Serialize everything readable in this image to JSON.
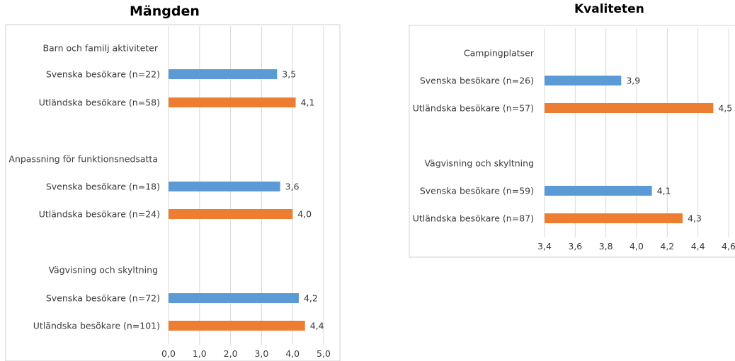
{
  "colors": {
    "swedish": "#5B9BD5",
    "foreign": "#ED7D31",
    "grid": "#d9d9d9",
    "frame": "#d0d0d0"
  },
  "chart_data": [
    {
      "type": "bar",
      "orientation": "horizontal",
      "title": "Mängden",
      "xlim": [
        0,
        5
      ],
      "xticks": [
        "0,0",
        "1,0",
        "2,0",
        "3,0",
        "4,0",
        "5,0"
      ],
      "grid": true,
      "groups": [
        {
          "name": "Barn och familj aktiviteter",
          "bars": [
            {
              "label": "Svenska besökare (n=22)",
              "value": 3.5,
              "value_label": "3,5",
              "color_key": "swedish"
            },
            {
              "label": "Utländska besökare (n=58)",
              "value": 4.1,
              "value_label": "4,1",
              "color_key": "foreign"
            }
          ]
        },
        {
          "name": "Anpassning för funktionsnedsatta",
          "bars": [
            {
              "label": "Svenska besökare (n=18)",
              "value": 3.6,
              "value_label": "3,6",
              "color_key": "swedish"
            },
            {
              "label": "Utländska besökare (n=24)",
              "value": 4.0,
              "value_label": "4,0",
              "color_key": "foreign"
            }
          ]
        },
        {
          "name": "Vägvisning och skyltning",
          "bars": [
            {
              "label": "Svenska besökare (n=72)",
              "value": 4.2,
              "value_label": "4,2",
              "color_key": "swedish"
            },
            {
              "label": "Utländska besökare (n=101)",
              "value": 4.4,
              "value_label": "4,4",
              "color_key": "foreign"
            }
          ]
        }
      ]
    },
    {
      "type": "bar",
      "orientation": "horizontal",
      "title": "Kvaliteten",
      "xlim": [
        3.4,
        4.6
      ],
      "xticks": [
        "3,4",
        "3,6",
        "3,8",
        "4,0",
        "4,2",
        "4,4",
        "4,6"
      ],
      "grid": true,
      "groups": [
        {
          "name": "Campingplatser",
          "bars": [
            {
              "label": "Svenska besökare (n=26)",
              "value": 3.9,
              "value_label": "3,9",
              "color_key": "swedish"
            },
            {
              "label": "Utländska besökare (n=57)",
              "value": 4.5,
              "value_label": "4,5",
              "color_key": "foreign"
            }
          ]
        },
        {
          "name": "Vägvisning och skyltning",
          "bars": [
            {
              "label": "Svenska besökare (n=59)",
              "value": 4.1,
              "value_label": "4,1",
              "color_key": "swedish"
            },
            {
              "label": "Utländska besökare (n=87)",
              "value": 4.3,
              "value_label": "4,3",
              "color_key": "foreign"
            }
          ]
        }
      ]
    }
  ]
}
